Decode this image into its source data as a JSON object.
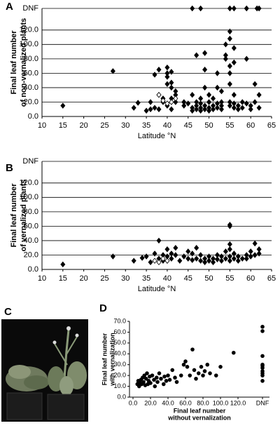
{
  "chart_data": [
    {
      "type": "scatter",
      "panel": "A",
      "ylabel": [
        "Final leaf number",
        "of non-vernalized plants"
      ],
      "xlabel": "Latitude °N",
      "xlim": [
        10,
        65
      ],
      "xticks": [
        10,
        15,
        20,
        25,
        30,
        35,
        40,
        45,
        50,
        55,
        60,
        65
      ],
      "ylim": [
        0,
        150
      ],
      "yticks": [
        {
          "value": 0,
          "label": "0.0"
        },
        {
          "value": 20,
          "label": "20.0"
        },
        {
          "value": 40,
          "label": "40.0"
        },
        {
          "value": 60,
          "label": "60.0"
        },
        {
          "value": 80,
          "label": "80.0"
        },
        {
          "value": 100,
          "label": "100.0"
        },
        {
          "value": 120,
          "label": "120.0"
        },
        {
          "value": 150,
          "label": "DNF"
        }
      ],
      "grid": true,
      "marker": "diamond",
      "series": [
        {
          "color": "#000000",
          "fill": "filled",
          "x": [
            46,
            48,
            55,
            56,
            59,
            61.5,
            62,
            15,
            27,
            32,
            33,
            35,
            36,
            36,
            37,
            37,
            38,
            38,
            38,
            39,
            39,
            40,
            40,
            40,
            40,
            40,
            41,
            41,
            41,
            41,
            41,
            42,
            42,
            42,
            44,
            44,
            45,
            46,
            46,
            46,
            47,
            47,
            47,
            47,
            48,
            48,
            48,
            48,
            49,
            49,
            49,
            49,
            49,
            50,
            50,
            50,
            50,
            51,
            51,
            51,
            52,
            52,
            52,
            52,
            53,
            53,
            53,
            53,
            54,
            54,
            54,
            55,
            55,
            55,
            55,
            55,
            55,
            55,
            56,
            56,
            56,
            56,
            56,
            57,
            57,
            58,
            58,
            59,
            59,
            60,
            60,
            61,
            61,
            62,
            62
          ],
          "values": [
            150,
            150,
            150,
            150,
            150,
            150,
            150,
            15,
            63,
            12,
            19,
            8,
            10,
            20,
            58,
            12,
            65,
            30,
            10,
            25,
            20,
            55,
            45,
            68,
            60,
            15,
            62,
            40,
            25,
            47,
            10,
            35,
            30,
            20,
            20,
            15,
            18,
            30,
            12,
            8,
            20,
            15,
            10,
            85,
            18,
            12,
            8,
            25,
            15,
            10,
            40,
            65,
            88,
            20,
            12,
            8,
            30,
            15,
            10,
            25,
            18,
            12,
            40,
            60,
            20,
            15,
            10,
            35,
            100,
            85,
            80,
            118,
            108,
            70,
            60,
            45,
            20,
            15,
            95,
            75,
            30,
            18,
            12,
            15,
            10,
            20,
            12,
            80,
            18,
            15,
            10,
            45,
            20,
            30,
            12
          ]
        },
        {
          "color": "#000000",
          "fill": "open",
          "x": [
            38,
            39,
            40,
            41,
            42
          ],
          "values": [
            30,
            22,
            18,
            20,
            25
          ]
        }
      ]
    },
    {
      "type": "scatter",
      "panel": "B",
      "ylabel": [
        "Final leaf number",
        "of vernalized plants"
      ],
      "xlabel": "Latitude °N",
      "xlim": [
        10,
        65
      ],
      "xticks": [
        10,
        15,
        20,
        25,
        30,
        35,
        40,
        45,
        50,
        55,
        60,
        65
      ],
      "ylim": [
        0,
        150
      ],
      "yticks": [
        {
          "value": 0,
          "label": "0.0"
        },
        {
          "value": 20,
          "label": "20.0"
        },
        {
          "value": 40,
          "label": "40.0"
        },
        {
          "value": 60,
          "label": "60.0"
        },
        {
          "value": 80,
          "label": "80.0"
        },
        {
          "value": 100,
          "label": "100.0"
        },
        {
          "value": 120,
          "label": "120.0"
        },
        {
          "value": 150,
          "label": "DNF"
        }
      ],
      "grid": true,
      "marker": "diamond",
      "series": [
        {
          "color": "#000000",
          "fill": "filled",
          "x": [
            15,
            27,
            32,
            34,
            35,
            36,
            37,
            38,
            38,
            39,
            39,
            40,
            40,
            40,
            41,
            41,
            42,
            42,
            43,
            44,
            45,
            45,
            46,
            46,
            47,
            47,
            48,
            48,
            49,
            49,
            50,
            50,
            51,
            51,
            52,
            52,
            53,
            53,
            54,
            54,
            55,
            55,
            55,
            55,
            55,
            55,
            56,
            56,
            57,
            57,
            58,
            59,
            59,
            60,
            60,
            61,
            61,
            62,
            62
          ],
          "values": [
            7,
            18,
            12,
            16,
            18,
            10,
            22,
            40,
            15,
            12,
            20,
            28,
            18,
            12,
            22,
            15,
            20,
            30,
            12,
            18,
            15,
            25,
            13,
            22,
            15,
            30,
            12,
            20,
            15,
            10,
            12,
            18,
            15,
            10,
            20,
            14,
            12,
            18,
            25,
            15,
            60,
            62,
            35,
            28,
            18,
            12,
            22,
            15,
            18,
            12,
            15,
            20,
            15,
            18,
            25,
            20,
            36,
            22,
            28
          ]
        },
        {
          "color": "#000000",
          "fill": "open",
          "x": [
            37,
            38,
            39,
            40
          ],
          "values": [
            12,
            10,
            15,
            12
          ]
        }
      ]
    },
    {
      "type": "scatter",
      "panel": "D",
      "ylabel": [
        "Final leaf number",
        "with vernalization"
      ],
      "xlabel": [
        "Final leaf number",
        "without vernalization"
      ],
      "xlim": [
        -4,
        156
      ],
      "xticks": [
        {
          "value": 0,
          "label": "0.0"
        },
        {
          "value": 20,
          "label": "20.0"
        },
        {
          "value": 40,
          "label": "40.0"
        },
        {
          "value": 60,
          "label": "60.0"
        },
        {
          "value": 80,
          "label": "80.0"
        },
        {
          "value": 100,
          "label": "100.0"
        },
        {
          "value": 120,
          "label": "120.0"
        },
        {
          "value": 148,
          "label": "DNF"
        }
      ],
      "ylim": [
        0,
        70
      ],
      "yticks": [
        {
          "value": 0,
          "label": "0.0"
        },
        {
          "value": 10,
          "label": "10.0"
        },
        {
          "value": 20,
          "label": "20.0"
        },
        {
          "value": 30,
          "label": "30.0"
        },
        {
          "value": 40,
          "label": "40.0"
        },
        {
          "value": 50,
          "label": "50.0"
        },
        {
          "value": 60,
          "label": "60.0"
        },
        {
          "value": 70,
          "label": "70.0"
        }
      ],
      "grid": false,
      "marker": "circle",
      "series": [
        {
          "color": "#000000",
          "fill": "filled",
          "x": [
            5,
            6,
            7,
            8,
            9,
            10,
            11,
            12,
            13,
            14,
            15,
            16,
            17,
            18,
            19,
            20,
            22,
            24,
            25,
            27,
            28,
            30,
            32,
            35,
            36,
            38,
            40,
            42,
            45,
            48,
            50,
            55,
            58,
            60,
            62,
            65,
            68,
            70,
            72,
            75,
            78,
            80,
            82,
            85,
            88,
            95,
            100,
            115,
            148,
            148,
            148,
            148,
            148,
            148,
            148,
            148,
            148,
            148
          ],
          "values": [
            12,
            15,
            10,
            13,
            16,
            12,
            18,
            14,
            20,
            11,
            17,
            22,
            12,
            15,
            19,
            13,
            20,
            16,
            10,
            18,
            14,
            22,
            17,
            12,
            19,
            15,
            20,
            16,
            25,
            18,
            14,
            20,
            30,
            33,
            28,
            20,
            44,
            25,
            17,
            22,
            28,
            20,
            24,
            30,
            22,
            20,
            28,
            41,
            65,
            61,
            38,
            30,
            27,
            24,
            20,
            15,
            29,
            22
          ]
        }
      ]
    }
  ],
  "image": {
    "panel": "C"
  }
}
